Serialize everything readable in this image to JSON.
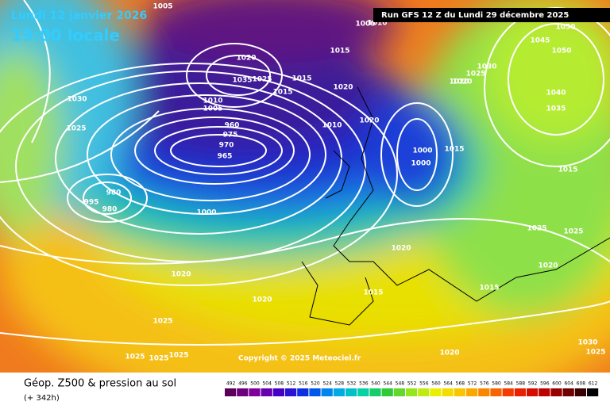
{
  "header": {
    "date": "Lundi 12 janvier 2026",
    "time": "19:00 locale",
    "run": "Run GFS 12 Z du Lundi 29 décembre 2025"
  },
  "copyright": "Copyright © 2025 Meteociel.fr",
  "footer": {
    "title": "Géop. Z500 & pression au sol",
    "lead": "(+ 342h)"
  },
  "legend": {
    "values": [
      492,
      496,
      500,
      504,
      508,
      512,
      516,
      520,
      524,
      528,
      532,
      536,
      540,
      544,
      548,
      552,
      556,
      560,
      564,
      568,
      572,
      576,
      580,
      584,
      588,
      592,
      596,
      600,
      604,
      608,
      612
    ]
  },
  "isobars": [
    "1005",
    "1010",
    "1000",
    "1020",
    "1015",
    "1035",
    "1025",
    "1010",
    "1005",
    "1015",
    "1020",
    "1015",
    "1020",
    "1030",
    "1025",
    "1045",
    "1050",
    "1050",
    "1040",
    "1035",
    "1030",
    "1025",
    "1020",
    "1000",
    "1000",
    "1010",
    "1015",
    "1025",
    "1025",
    "1020",
    "1020",
    "1015",
    "1020",
    "1020",
    "1015",
    "1025",
    "1025",
    "1025",
    "1025",
    "1020",
    "1015",
    "1030",
    "1025",
    "980",
    "995",
    "980",
    "965",
    "970",
    "975",
    "960",
    "1000",
    "1020"
  ]
}
